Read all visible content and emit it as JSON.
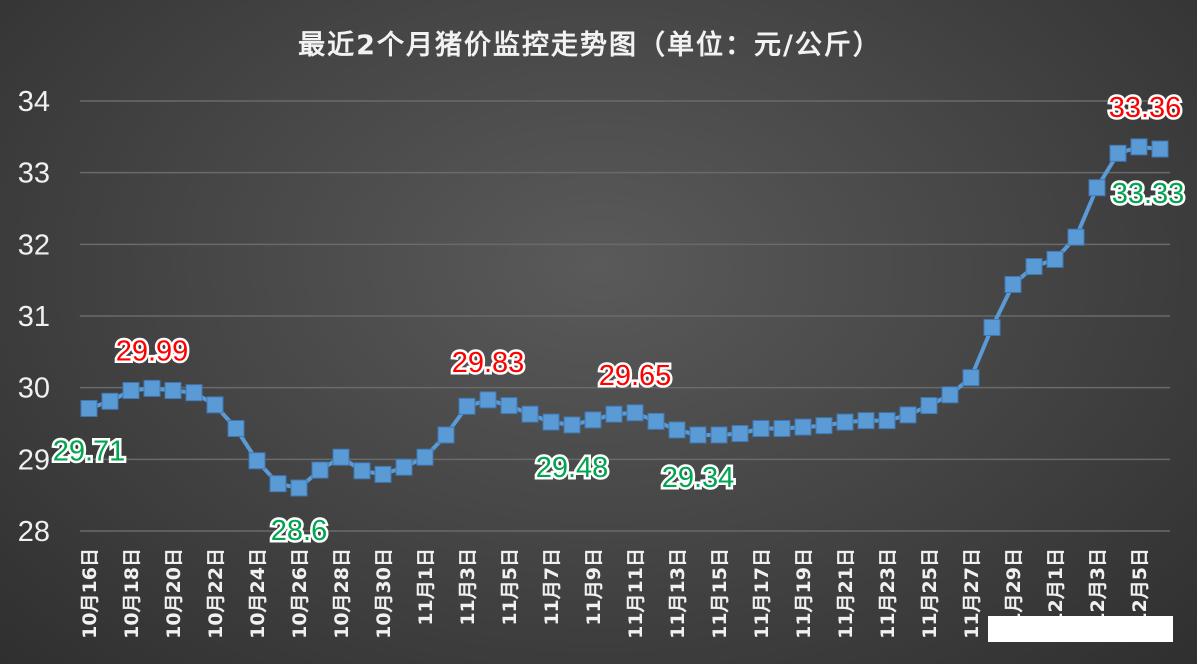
{
  "chart_data": {
    "type": "line",
    "title": "最近2个月猪价监控走势图（单位：元/公斤）",
    "xlabel": "",
    "ylabel": "",
    "ylim": [
      28,
      34
    ],
    "yticks": [
      "28",
      "29",
      "30",
      "31",
      "32",
      "33",
      "34"
    ],
    "grid": true,
    "line_color": "#5b9bd5",
    "categories": [
      "10月16日",
      "10月17日",
      "10月18日",
      "10月19日",
      "10月20日",
      "10月21日",
      "10月22日",
      "10月23日",
      "10月24日",
      "10月25日",
      "10月26日",
      "10月27日",
      "10月28日",
      "10月29日",
      "10月30日",
      "10月31日",
      "11月1日",
      "11月2日",
      "11月3日",
      "11月4日",
      "11月5日",
      "11月6日",
      "11月7日",
      "11月8日",
      "11月9日",
      "11月10日",
      "11月11日",
      "11月12日",
      "11月13日",
      "11月14日",
      "11月15日",
      "11月16日",
      "11月17日",
      "11月18日",
      "11月19日",
      "11月20日",
      "11月21日",
      "11月22日",
      "11月23日",
      "11月24日",
      "11月25日",
      "11月26日",
      "11月27日",
      "11月28日",
      "11月29日",
      "11月30日",
      "12月1日",
      "12月2日",
      "12月3日",
      "12月4日",
      "12月5日",
      "12月6日"
    ],
    "tick_labels": [
      "10月16日",
      "10月18日",
      "10月20日",
      "10月22日",
      "10月24日",
      "10月26日",
      "10月28日",
      "10月30日",
      "11月1日",
      "11月3日",
      "11月5日",
      "11月7日",
      "11月9日",
      "11月11日",
      "11月13日",
      "11月15日",
      "11月17日",
      "11月19日",
      "11月21日",
      "11月23日",
      "11月25日",
      "11月27日",
      "11月29日",
      "12月1日",
      "12月3日",
      "12月5日"
    ],
    "series": [
      {
        "values": [
          29.71,
          29.81,
          29.96,
          29.99,
          29.96,
          29.93,
          29.76,
          29.43,
          28.98,
          28.66,
          28.6,
          28.85,
          29.03,
          28.84,
          28.79,
          28.89,
          29.03,
          29.34,
          29.74,
          29.83,
          29.75,
          29.63,
          29.52,
          29.48,
          29.55,
          29.63,
          29.65,
          29.53,
          29.41,
          29.34,
          29.34,
          29.36,
          29.43,
          29.43,
          29.45,
          29.47,
          29.52,
          29.54,
          29.54,
          29.62,
          29.75,
          29.9,
          30.14,
          30.84,
          31.44,
          31.69,
          31.79,
          32.1,
          32.79,
          33.27,
          33.36,
          33.33
        ]
      }
    ],
    "annotations": [
      {
        "index": 0,
        "text": "29.71",
        "kind": "min"
      },
      {
        "index": 3,
        "text": "29.99",
        "kind": "max"
      },
      {
        "index": 10,
        "text": "28.6",
        "kind": "min"
      },
      {
        "index": 19,
        "text": "29.83",
        "kind": "max"
      },
      {
        "index": 23,
        "text": "29.48",
        "kind": "min"
      },
      {
        "index": 26,
        "text": "29.65",
        "kind": "max"
      },
      {
        "index": 29,
        "text": "29.34",
        "kind": "min"
      },
      {
        "index": 50,
        "text": "33.36",
        "kind": "max"
      },
      {
        "index": 51,
        "text": "33.33",
        "kind": "min"
      }
    ]
  }
}
